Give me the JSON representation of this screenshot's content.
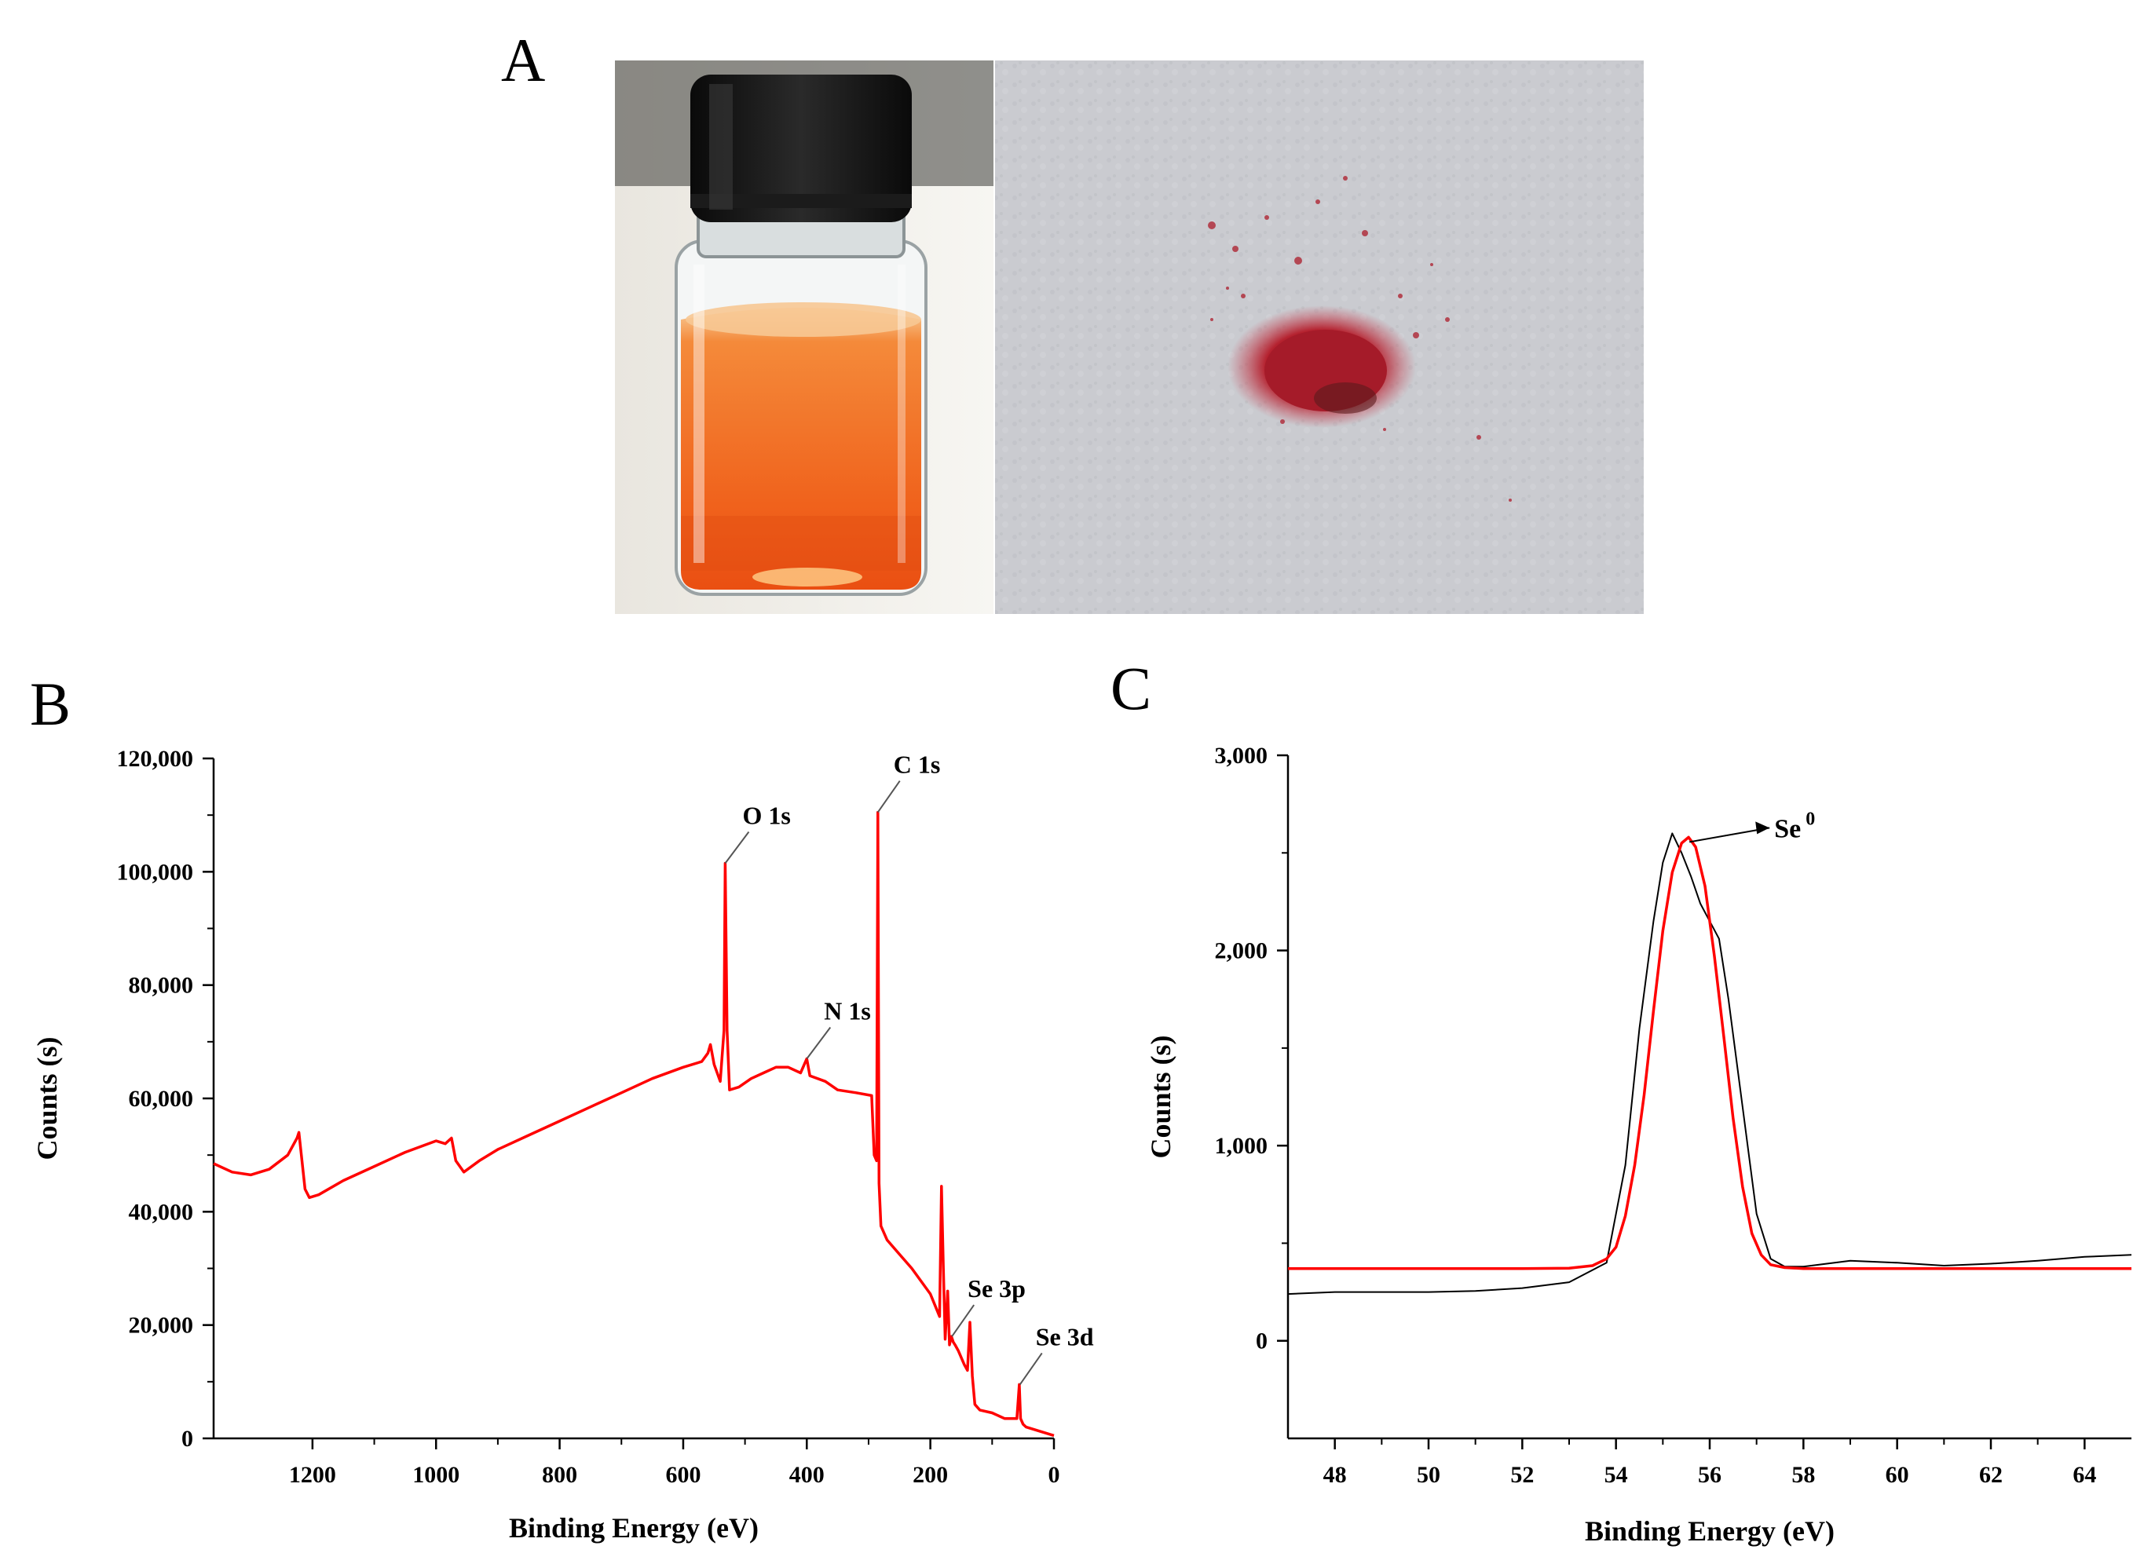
{
  "panels": {
    "a_label": "A",
    "b_label": "B",
    "c_label": "C"
  },
  "photo": {
    "liquid_color": "#f26a1e",
    "powder_color": "#b5222f",
    "cap_color": "#111111",
    "paper_color": "#c4c6ca"
  },
  "chart_data": [
    {
      "type": "line",
      "panel": "B",
      "xlabel": "Binding Energy (eV)",
      "ylabel": "Counts (s)",
      "xlim": [
        1360,
        0
      ],
      "x_reversed": true,
      "ylim": [
        0,
        120000
      ],
      "xticks": [
        1200,
        1000,
        800,
        600,
        400,
        200,
        0
      ],
      "xtick_labels": [
        "1200",
        "1000",
        "800",
        "600",
        "400",
        "200",
        "0"
      ],
      "yticks": [
        0,
        20000,
        40000,
        60000,
        80000,
        100000,
        120000
      ],
      "ytick_labels": [
        "0",
        "20,000",
        "40,000",
        "60,000",
        "80,000",
        "100,000",
        "120,000"
      ],
      "grid": false,
      "series": [
        {
          "color": "#ff0000",
          "x": [
            1360,
            1330,
            1300,
            1270,
            1240,
            1225,
            1222,
            1212,
            1205,
            1190,
            1150,
            1100,
            1050,
            1000,
            985,
            975,
            968,
            955,
            930,
            900,
            850,
            800,
            750,
            700,
            650,
            600,
            570,
            560,
            556,
            550,
            540,
            534,
            532,
            529,
            525,
            510,
            490,
            470,
            450,
            430,
            410,
            400,
            395,
            370,
            350,
            320,
            295,
            291,
            287,
            285,
            283,
            280,
            270,
            250,
            230,
            200,
            185,
            182,
            179,
            176,
            172,
            169,
            166,
            163,
            160,
            155,
            145,
            140,
            136,
            132,
            128,
            120,
            100,
            80,
            60,
            56,
            54,
            52,
            50,
            45,
            30,
            15,
            0
          ],
          "y": [
            48500,
            47000,
            46500,
            47500,
            50000,
            53000,
            54000,
            44000,
            42500,
            43000,
            45500,
            48000,
            50500,
            52500,
            52000,
            53000,
            49000,
            47000,
            49000,
            51000,
            53500,
            56000,
            58500,
            61000,
            63500,
            65500,
            66500,
            68000,
            69500,
            66000,
            63000,
            72000,
            101500,
            72000,
            61500,
            62000,
            63500,
            64500,
            65500,
            65500,
            64500,
            67000,
            64000,
            63000,
            61500,
            61000,
            60500,
            50000,
            49000,
            110500,
            45000,
            37500,
            35000,
            32500,
            30000,
            25500,
            21500,
            44500,
            30000,
            17500,
            26000,
            16500,
            18000,
            17000,
            16500,
            15500,
            13000,
            12000,
            20500,
            11000,
            6000,
            5000,
            4500,
            3500,
            3500,
            9500,
            3500,
            3000,
            2500,
            2000,
            1500,
            1000,
            500
          ]
        }
      ],
      "annotations": [
        {
          "text": "O 1s",
          "x": 532,
          "y": 101500
        },
        {
          "text": "C 1s",
          "x": 285,
          "y": 110500
        },
        {
          "text": "N 1s",
          "x": 400,
          "y": 67000
        },
        {
          "text": "Se 3p",
          "x": 165,
          "y": 18000
        },
        {
          "text": "Se 3d",
          "x": 55,
          "y": 9500
        }
      ]
    },
    {
      "type": "line",
      "panel": "C",
      "xlabel": "Binding Energy (eV)",
      "ylabel": "Counts (s)",
      "xlim": [
        47,
        65
      ],
      "ylim": [
        -500,
        3000
      ],
      "xticks": [
        48,
        50,
        52,
        54,
        56,
        58,
        60,
        62,
        64
      ],
      "xtick_labels": [
        "48",
        "50",
        "52",
        "54",
        "56",
        "58",
        "60",
        "62",
        "64"
      ],
      "yticks": [
        0,
        1000,
        2000,
        3000
      ],
      "ytick_labels": [
        "0",
        "1,000",
        "2,000",
        "3,000"
      ],
      "grid": false,
      "series": [
        {
          "color": "#000000",
          "x": [
            47,
            48,
            49,
            50,
            51,
            52,
            53,
            53.8,
            54.2,
            54.5,
            54.8,
            55.0,
            55.2,
            55.4,
            55.6,
            55.8,
            56.0,
            56.2,
            56.4,
            56.7,
            57.0,
            57.3,
            57.6,
            58,
            59,
            60,
            61,
            62,
            63,
            64,
            65
          ],
          "y": [
            240,
            250,
            250,
            250,
            255,
            270,
            300,
            400,
            900,
            1600,
            2150,
            2450,
            2600,
            2500,
            2380,
            2240,
            2150,
            2060,
            1750,
            1200,
            650,
            420,
            380,
            380,
            410,
            400,
            385,
            395,
            410,
            430,
            440
          ]
        },
        {
          "color": "#ff0000",
          "x": [
            47,
            48,
            49,
            50,
            51,
            52,
            53,
            53.5,
            53.8,
            54.0,
            54.2,
            54.4,
            54.6,
            54.8,
            55.0,
            55.2,
            55.4,
            55.55,
            55.7,
            55.9,
            56.1,
            56.3,
            56.5,
            56.7,
            56.9,
            57.1,
            57.3,
            57.6,
            58,
            59,
            60,
            61,
            62,
            63,
            64,
            65
          ],
          "y": [
            370,
            370,
            370,
            370,
            370,
            370,
            372,
            385,
            420,
            480,
            640,
            900,
            1260,
            1690,
            2100,
            2400,
            2550,
            2580,
            2530,
            2330,
            1970,
            1560,
            1140,
            790,
            550,
            440,
            390,
            375,
            370,
            370,
            370,
            370,
            370,
            370,
            370,
            370
          ]
        }
      ],
      "annotations": [
        {
          "text": "Se",
          "superscript": "0",
          "x": 55.4,
          "y": 2580
        }
      ]
    }
  ]
}
